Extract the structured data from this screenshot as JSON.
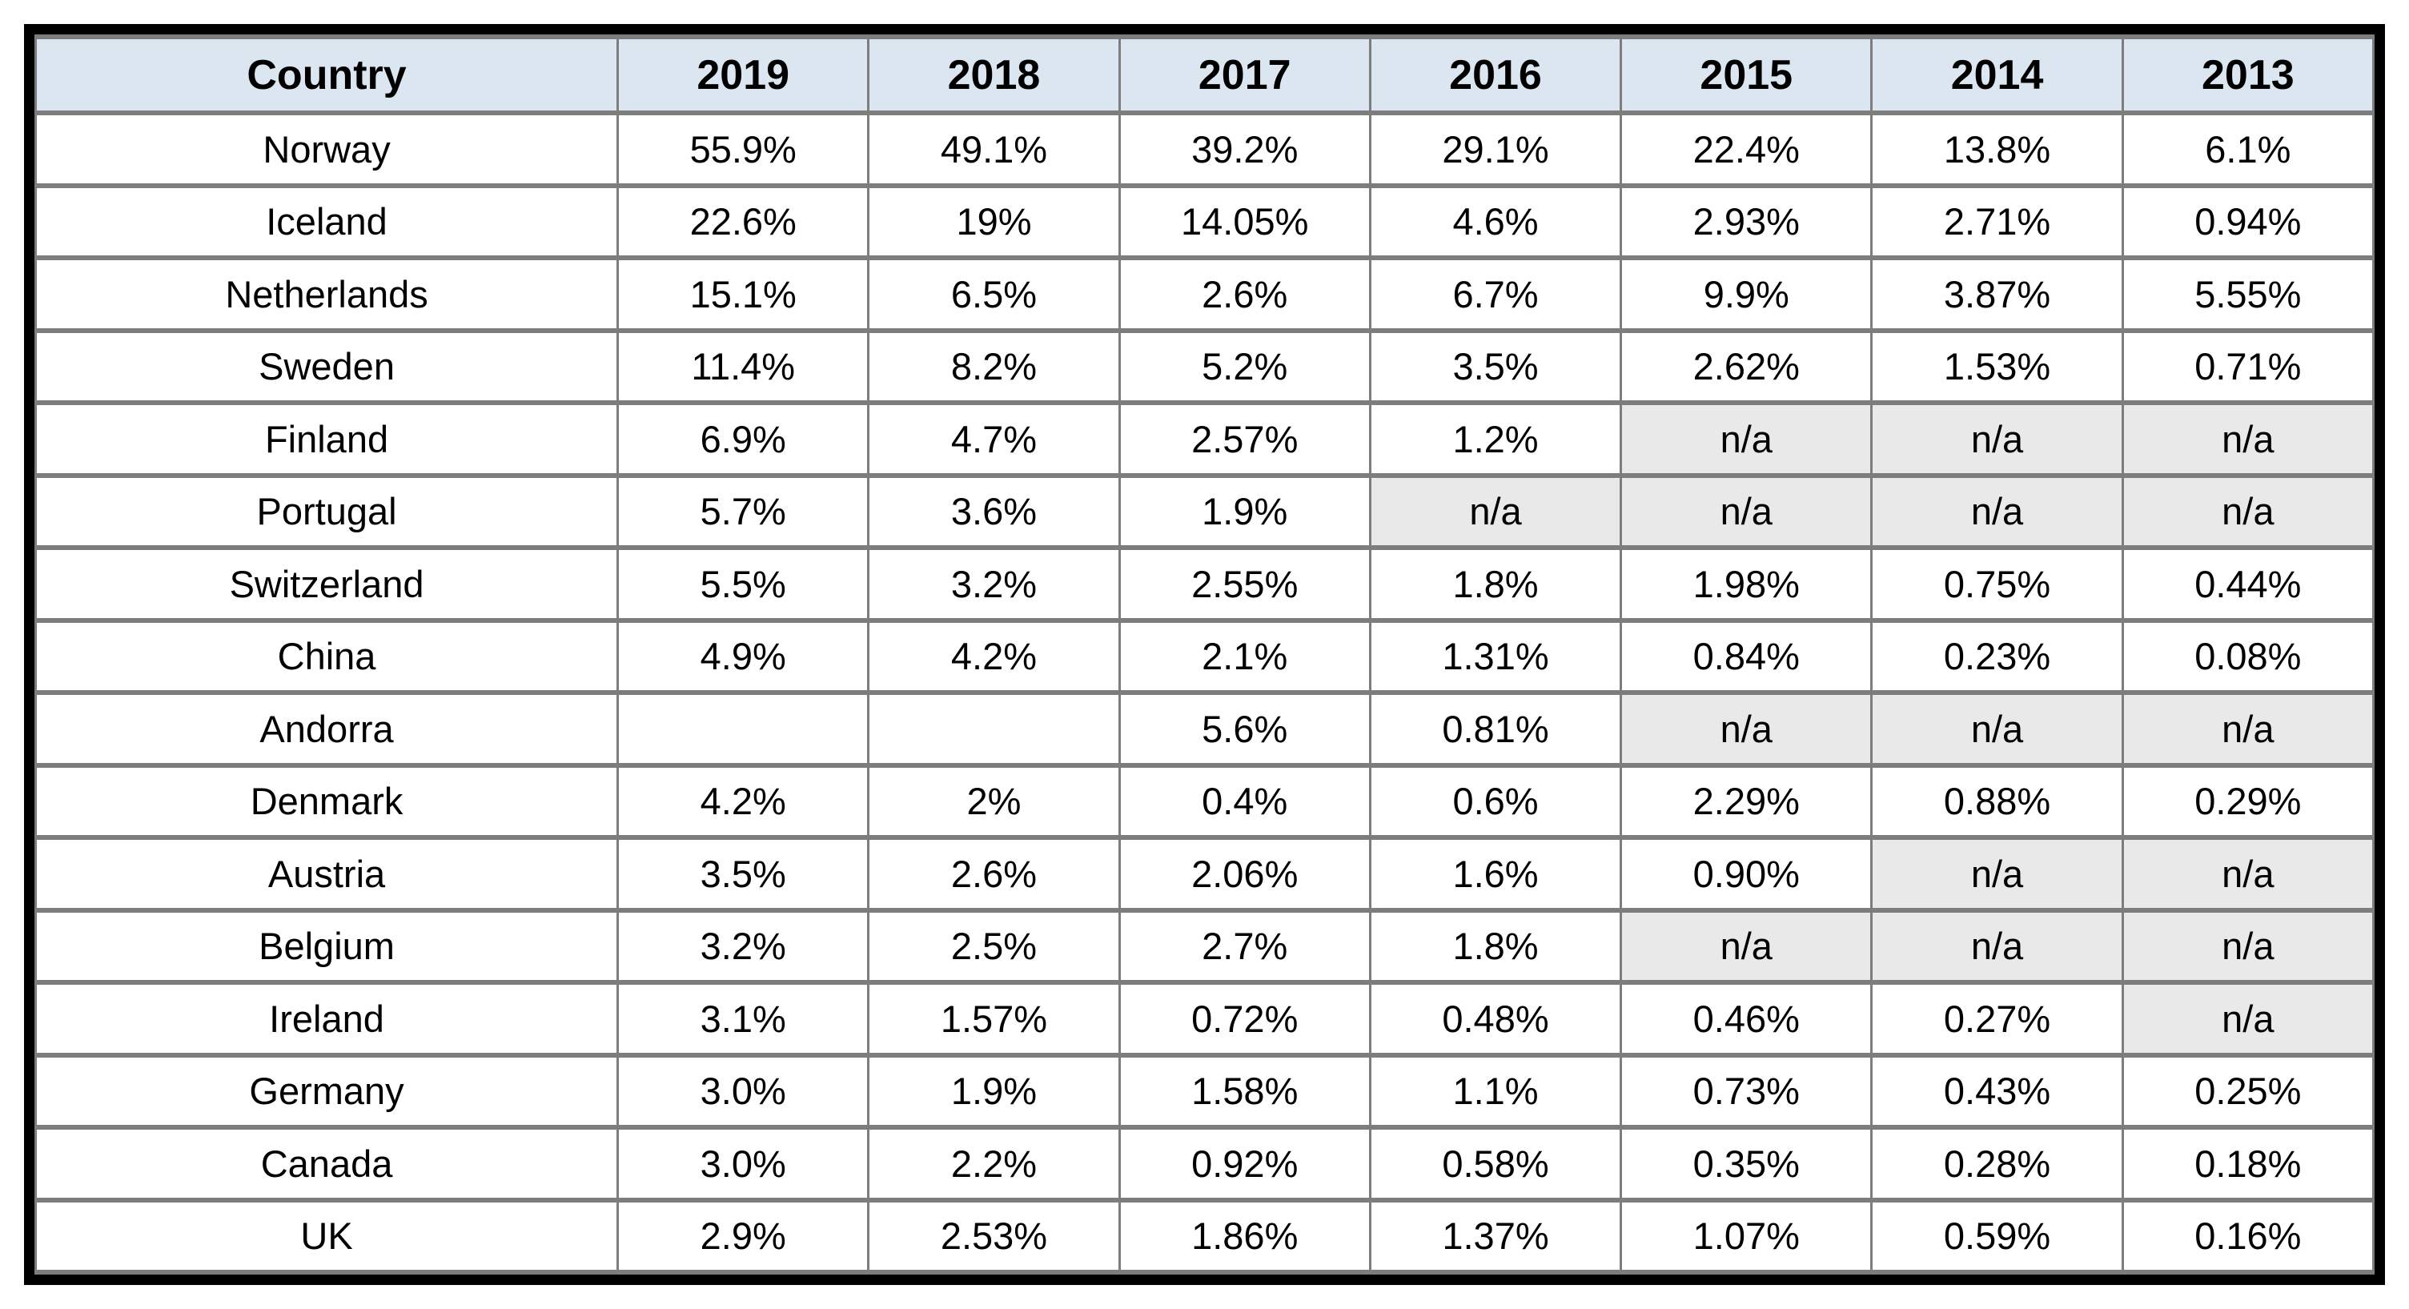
{
  "colors": {
    "frame_border": "#000000",
    "grid_line": "#7d7d7d",
    "header_background": "#dce6f1",
    "na_cell_background": "#e9e9e9",
    "cell_background": "#ffffff",
    "text": "#000000"
  },
  "chart_data": {
    "type": "table",
    "title": "",
    "na_label": "n/a",
    "columns": [
      "Country",
      "2019",
      "2018",
      "2017",
      "2016",
      "2015",
      "2014",
      "2013"
    ],
    "rows": [
      {
        "country": "Norway",
        "values": [
          "55.9%",
          "49.1%",
          "39.2%",
          "29.1%",
          "22.4%",
          "13.8%",
          "6.1%"
        ]
      },
      {
        "country": "Iceland",
        "values": [
          "22.6%",
          "19%",
          "14.05%",
          "4.6%",
          "2.93%",
          "2.71%",
          "0.94%"
        ]
      },
      {
        "country": "Netherlands",
        "values": [
          "15.1%",
          "6.5%",
          "2.6%",
          "6.7%",
          "9.9%",
          "3.87%",
          "5.55%"
        ]
      },
      {
        "country": "Sweden",
        "values": [
          "11.4%",
          "8.2%",
          "5.2%",
          "3.5%",
          "2.62%",
          "1.53%",
          "0.71%"
        ]
      },
      {
        "country": "Finland",
        "values": [
          "6.9%",
          "4.7%",
          "2.57%",
          "1.2%",
          "n/a",
          "n/a",
          "n/a"
        ]
      },
      {
        "country": "Portugal",
        "values": [
          "5.7%",
          "3.6%",
          "1.9%",
          "n/a",
          "n/a",
          "n/a",
          "n/a"
        ]
      },
      {
        "country": "Switzerland",
        "values": [
          "5.5%",
          "3.2%",
          "2.55%",
          "1.8%",
          "1.98%",
          "0.75%",
          "0.44%"
        ]
      },
      {
        "country": "China",
        "values": [
          "4.9%",
          "4.2%",
          "2.1%",
          "1.31%",
          "0.84%",
          "0.23%",
          "0.08%"
        ]
      },
      {
        "country": "Andorra",
        "values": [
          "",
          "",
          "5.6%",
          "0.81%",
          "n/a",
          "n/a",
          "n/a"
        ]
      },
      {
        "country": "Denmark",
        "values": [
          "4.2%",
          "2%",
          "0.4%",
          "0.6%",
          "2.29%",
          "0.88%",
          "0.29%"
        ]
      },
      {
        "country": "Austria",
        "values": [
          "3.5%",
          "2.6%",
          "2.06%",
          "1.6%",
          "0.90%",
          "n/a",
          "n/a"
        ]
      },
      {
        "country": "Belgium",
        "values": [
          "3.2%",
          "2.5%",
          "2.7%",
          "1.8%",
          "n/a",
          "n/a",
          "n/a"
        ]
      },
      {
        "country": "Ireland",
        "values": [
          "3.1%",
          "1.57%",
          "0.72%",
          "0.48%",
          "0.46%",
          "0.27%",
          "n/a"
        ]
      },
      {
        "country": "Germany",
        "values": [
          "3.0%",
          "1.9%",
          "1.58%",
          "1.1%",
          "0.73%",
          "0.43%",
          "0.25%"
        ]
      },
      {
        "country": "Canada",
        "values": [
          "3.0%",
          "2.2%",
          "0.92%",
          "0.58%",
          "0.35%",
          "0.28%",
          "0.18%"
        ]
      },
      {
        "country": "UK",
        "values": [
          "2.9%",
          "2.53%",
          "1.86%",
          "1.37%",
          "1.07%",
          "0.59%",
          "0.16%"
        ]
      }
    ]
  }
}
